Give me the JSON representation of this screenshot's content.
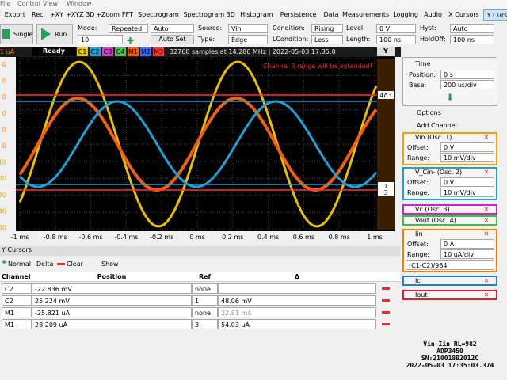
{
  "menu": [
    "File",
    "Control",
    "View",
    "Window"
  ],
  "toolbar": [
    "Export",
    "Rec.",
    "+XY",
    "+XYZ 3D",
    "+Zoom",
    "FFT",
    "Spectrogram",
    "Spectrogram 3D",
    "Histogram",
    "Persistence",
    "Data",
    "Measurements",
    "Logging",
    "Audio",
    "X Cursors",
    "Y Cursors"
  ],
  "toolbar_selected": "Y Cursors",
  "controls": {
    "single": "Single",
    "run": "Run",
    "mode_label": "Mode:",
    "mode": "Repeated",
    "auto": "Auto",
    "count": "10",
    "autoset": "Auto Set",
    "source_label": "Source:",
    "source": "Vin",
    "type_label": "Type:",
    "type": "Edge",
    "condition_label": "Condition:",
    "condition": "Rising",
    "lcondition_label": "LCondition:",
    "lcondition": "Less",
    "level_label": "Level:",
    "level": "0 V",
    "length_label": "Length:",
    "length": "100 ns",
    "hyst_label": "Hyst:",
    "hyst": "Auto",
    "holdoff_label": "HoldOff:",
    "holdoff": "100 ns"
  },
  "status": {
    "left": "1 uA",
    "state": "Ready",
    "channels": [
      {
        "label": "C1",
        "color": "#e8c800"
      },
      {
        "label": "C2",
        "color": "#1ea0d8"
      },
      {
        "label": "C3",
        "color": "#d040d0"
      },
      {
        "label": "C4",
        "color": "#50c050"
      },
      {
        "label": "M1",
        "color": "#ff5a00"
      },
      {
        "label": "M2",
        "color": "#3a6cff"
      },
      {
        "label": "M3",
        "color": "#ff3030"
      }
    ],
    "info": "32768 samples at 14.286 MHz | 2022-05-03 17:35:0",
    "y_button": "Y"
  },
  "plot": {
    "warning": "Channel 3 range will be extended!",
    "x_labels": [
      "-1 ms",
      "-0.8 ms",
      "-0.6 ms",
      "-0.4 ms",
      "-0.2 ms",
      "0 ms",
      "0.2 ms",
      "0.4 ms",
      "0.6 ms",
      "0.8 ms",
      "1 ms"
    ],
    "y_labels": [
      "0",
      "0",
      "0",
      "0",
      "0",
      "0",
      "10",
      "20",
      "30",
      "40",
      "50"
    ],
    "cursor_tags": [
      "4Δ3",
      "1",
      "3"
    ]
  },
  "cursors_panel": {
    "title": "Y Cursors",
    "buttons": [
      "Normal",
      "Delta",
      "Clear",
      "Show"
    ],
    "columns": [
      "Channel",
      "Position",
      "Ref",
      "Δ"
    ],
    "rows": [
      {
        "channel": "C2",
        "position": "-22.836 mV",
        "ref": "none"
      },
      {
        "channel": "C2",
        "position": "25.224 mV",
        "ref": "1",
        "delta": "48.06 mV"
      },
      {
        "channel": "M1",
        "position": "-25.821 uA",
        "ref": "none",
        "delta": "22.81 mA"
      },
      {
        "channel": "M1",
        "position": "28.209 uA",
        "ref": "3",
        "delta": "54.03 uA"
      }
    ]
  },
  "side": {
    "time": {
      "title": "Time",
      "position_label": "Position:",
      "position": "0 s",
      "base_label": "Base:",
      "base": "200 us/div"
    },
    "options": "Options",
    "add_channel": "Add Channel",
    "channels": [
      {
        "name": "Vin (Osc. 1)",
        "color": "#f0a000",
        "fields": [
          {
            "label": "Offset:",
            "value": "0 V"
          },
          {
            "label": "Range:",
            "value": "10 mV/div"
          }
        ]
      },
      {
        "name": "V_Cin- (Osc. 2)",
        "color": "#20a0d0",
        "fields": [
          {
            "label": "Offset:",
            "value": "0 V"
          },
          {
            "label": "Range:",
            "value": "10 mV/div"
          }
        ]
      },
      {
        "name": "Vc (Osc. 3)",
        "color": "#d020d0"
      },
      {
        "name": "Vout (Osc. 4)",
        "color": "#40c040"
      },
      {
        "name": "Iin",
        "color": "#f08000",
        "fields": [
          {
            "label": "Offset:",
            "value": "0 A"
          },
          {
            "label": "Range:",
            "value": "10 uA/div"
          }
        ],
        "formula": "(C1-C2)/984"
      },
      {
        "name": "Ic",
        "color": "#2080d0"
      },
      {
        "name": "Iout",
        "color": "#e02030"
      }
    ]
  },
  "device_info": [
    "Vin Iin RL=982",
    "ADP3450",
    "SN:210018B2012C",
    "2022-05-03 17:35:03.374"
  ]
}
